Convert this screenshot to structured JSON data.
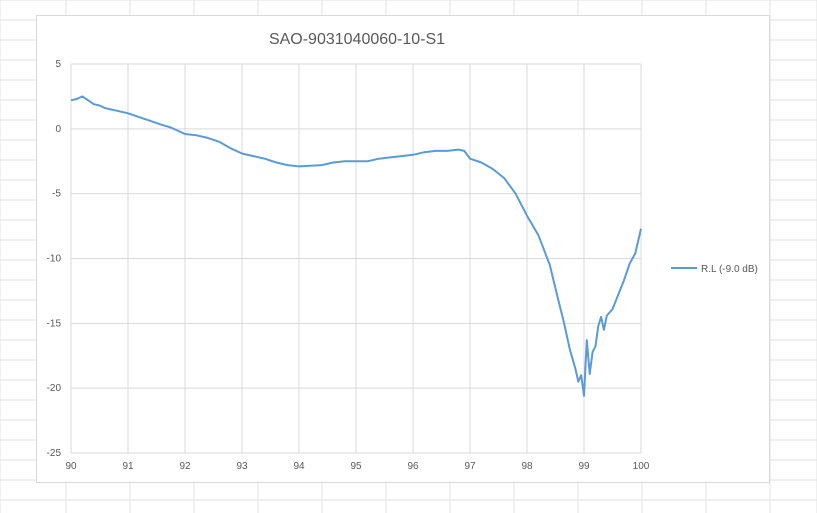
{
  "chart_data": {
    "type": "line",
    "title": "SAO-9031040060-10-S1",
    "xlabel": "",
    "ylabel": "",
    "xlim": [
      90,
      100
    ],
    "ylim": [
      -25,
      5
    ],
    "xticks": [
      "90",
      "91",
      "92",
      "93",
      "94",
      "95",
      "96",
      "97",
      "98",
      "99",
      "100"
    ],
    "yticks": [
      "5",
      "0",
      "-5",
      "-10",
      "-15",
      "-20",
      "-25"
    ],
    "grid": true,
    "legend_position": "right",
    "series": [
      {
        "name": "R.L (-9.0 dB)",
        "color": "#5b9bd5",
        "x": [
          90.0,
          90.1,
          90.2,
          90.3,
          90.4,
          90.5,
          90.6,
          90.8,
          91.0,
          91.2,
          91.4,
          91.6,
          91.75,
          91.9,
          92.0,
          92.2,
          92.4,
          92.6,
          92.8,
          93.0,
          93.2,
          93.4,
          93.6,
          93.8,
          94.0,
          94.2,
          94.4,
          94.6,
          94.8,
          95.0,
          95.2,
          95.4,
          95.6,
          95.8,
          96.0,
          96.2,
          96.4,
          96.6,
          96.8,
          96.9,
          97.0,
          97.2,
          97.4,
          97.6,
          97.8,
          98.0,
          98.2,
          98.4,
          98.55,
          98.65,
          98.75,
          98.85,
          98.9,
          98.95,
          99.0,
          99.05,
          99.1,
          99.15,
          99.2,
          99.25,
          99.3,
          99.35,
          99.4,
          99.5,
          99.6,
          99.7,
          99.8,
          99.9,
          100.0
        ],
        "values": [
          2.2,
          2.3,
          2.5,
          2.2,
          1.9,
          1.8,
          1.6,
          1.4,
          1.2,
          0.9,
          0.6,
          0.3,
          0.1,
          -0.2,
          -0.4,
          -0.5,
          -0.7,
          -1.0,
          -1.5,
          -1.9,
          -2.1,
          -2.3,
          -2.6,
          -2.8,
          -2.9,
          -2.85,
          -2.8,
          -2.6,
          -2.5,
          -2.5,
          -2.5,
          -2.3,
          -2.2,
          -2.1,
          -2.0,
          -1.8,
          -1.7,
          -1.7,
          -1.6,
          -1.7,
          -2.3,
          -2.6,
          -3.1,
          -3.8,
          -5.0,
          -6.7,
          -8.2,
          -10.5,
          -13.2,
          -15.0,
          -17.0,
          -18.5,
          -19.5,
          -19.0,
          -20.6,
          -16.3,
          -18.9,
          -17.2,
          -16.8,
          -15.2,
          -14.5,
          -15.5,
          -14.4,
          -13.9,
          -12.8,
          -11.7,
          -10.4,
          -9.6,
          -7.7
        ]
      }
    ]
  }
}
